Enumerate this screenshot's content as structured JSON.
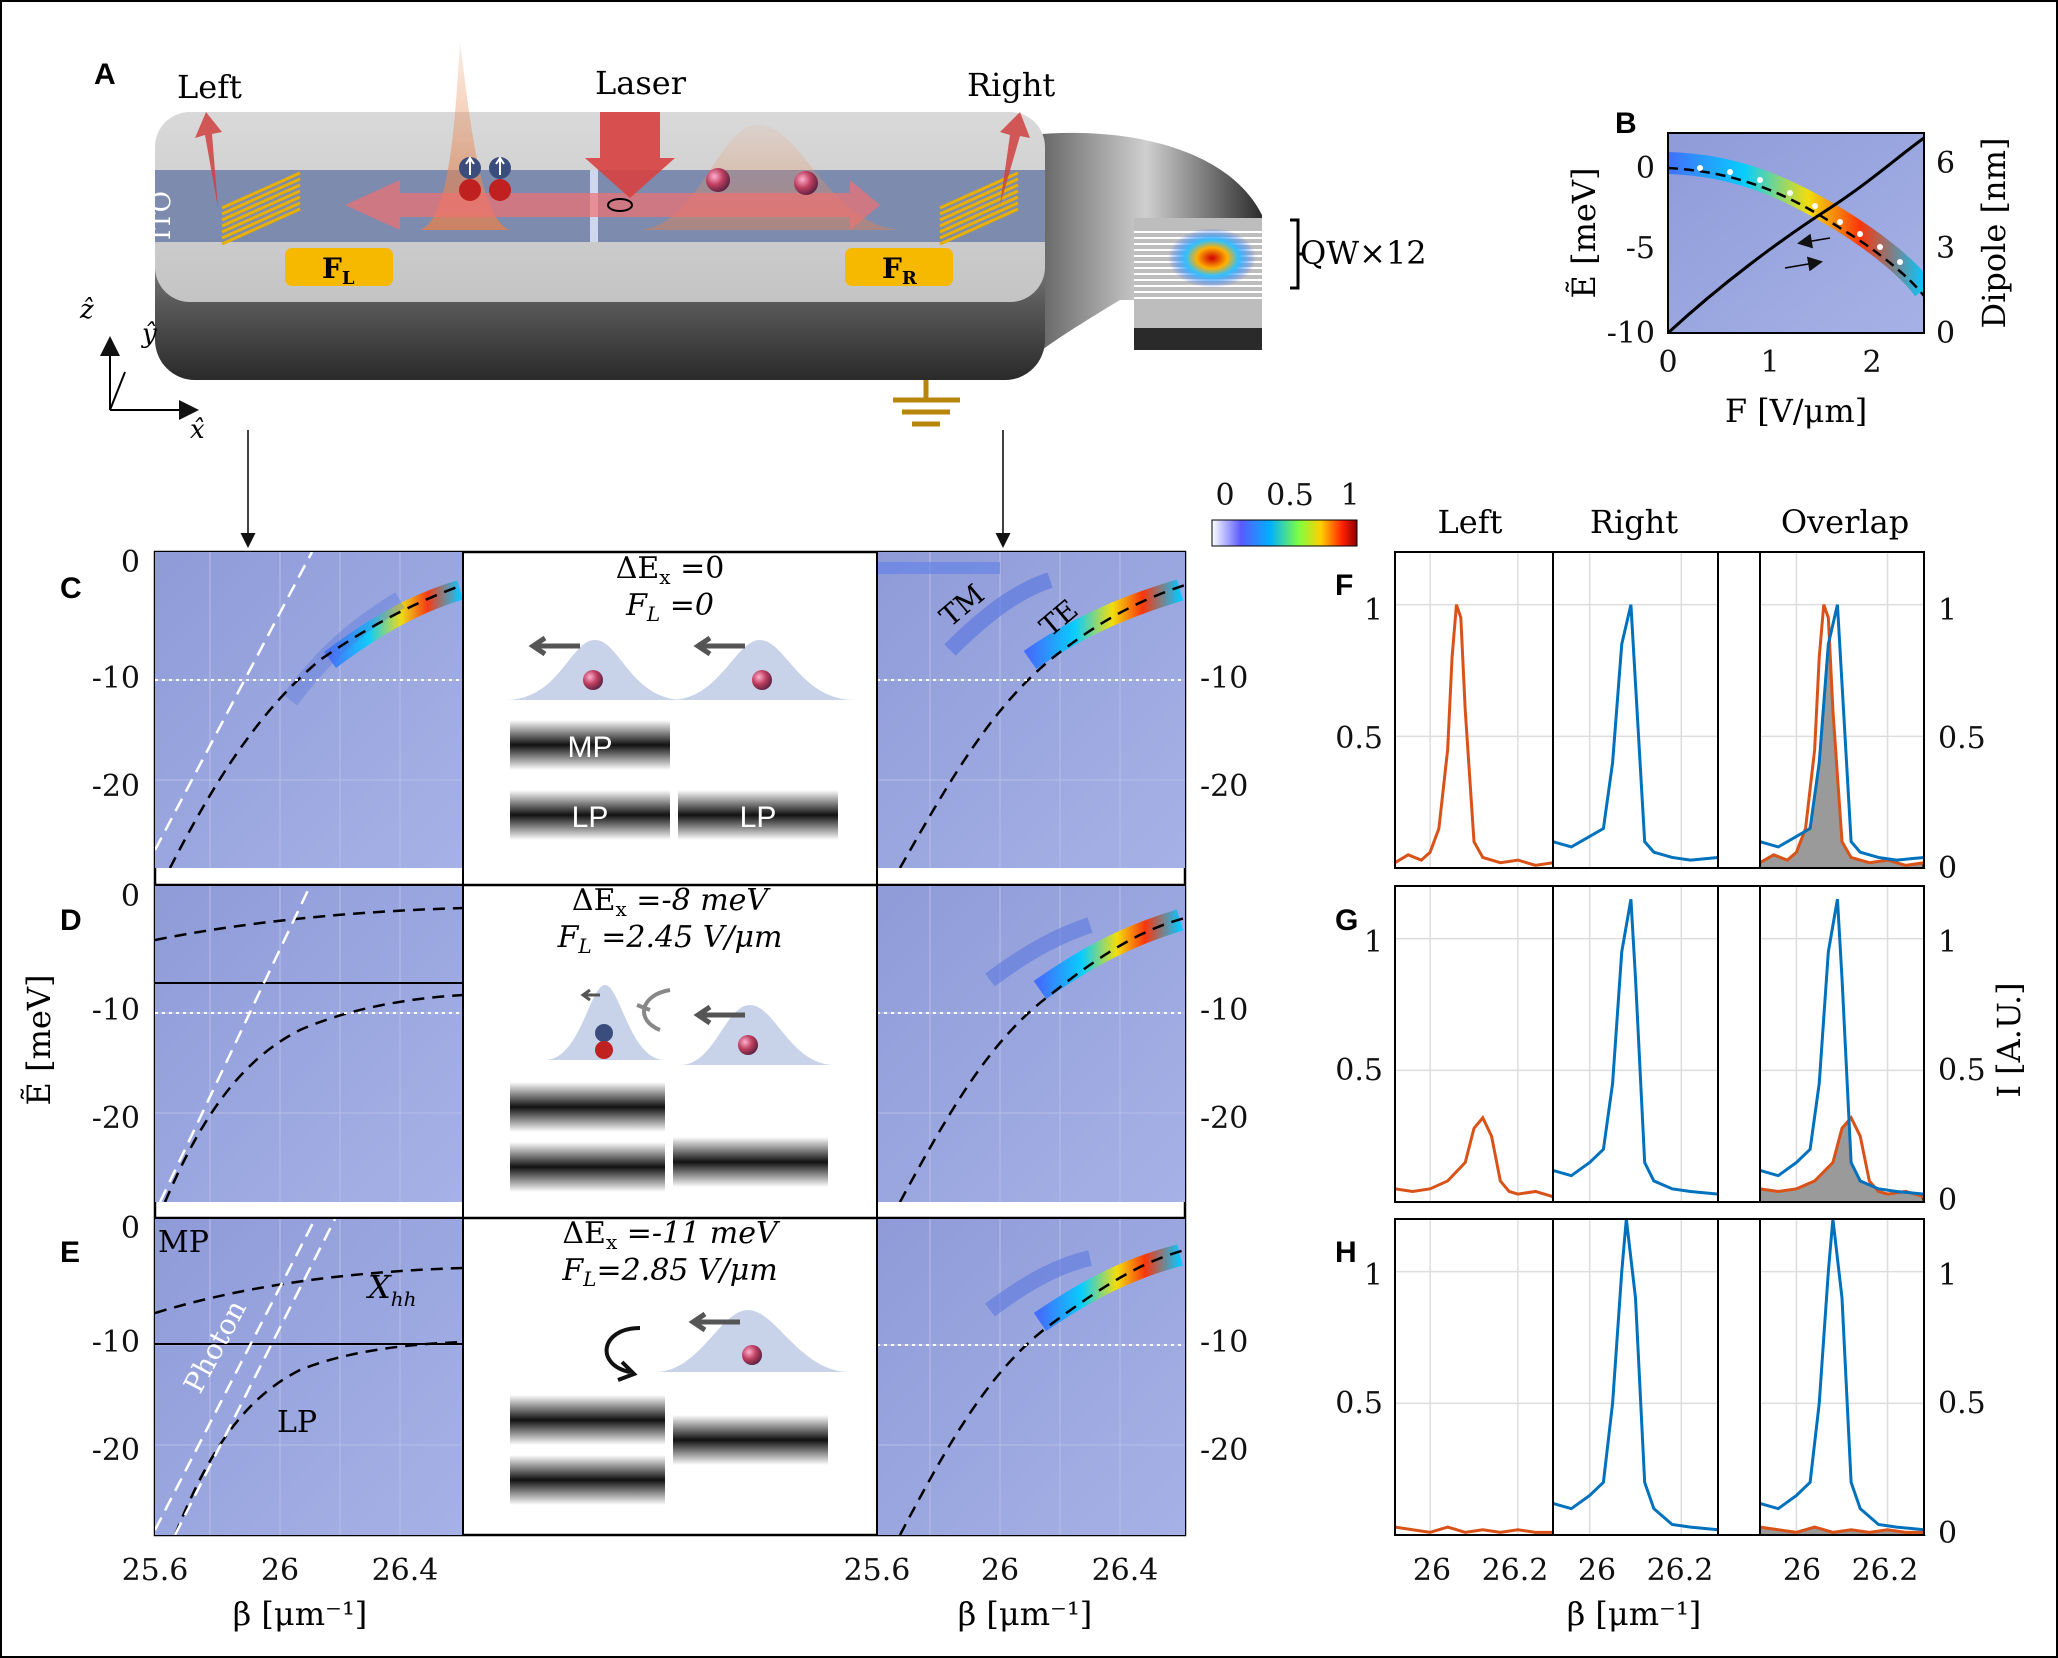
{
  "panels": {
    "A": "A",
    "B": "B",
    "C": "C",
    "D": "D",
    "E": "E",
    "F": "F",
    "G": "G",
    "H": "H"
  },
  "device": {
    "left": "Left",
    "right": "Right",
    "laser": "Laser",
    "ito": "ITO",
    "fl": "F",
    "fl_sub": "L",
    "fr": "F",
    "fr_sub": "R",
    "qw": "QW×12",
    "axis_z": "ẑ",
    "axis_y": "ŷ",
    "axis_x": "x̂"
  },
  "colorbar": {
    "ticks": [
      "0",
      "0.5",
      "1"
    ]
  },
  "panel_b": {
    "ylabel": "Ẽ [meV]",
    "y2label": "Dipole [nm]",
    "xlabel": "F [V/μm]",
    "yticks": [
      "0",
      "-5",
      "-10"
    ],
    "y2ticks": [
      "6",
      "3",
      "0"
    ],
    "xticks": [
      "0",
      "1",
      "2"
    ]
  },
  "dispersion": {
    "yticks": [
      "0",
      "-10",
      "-20"
    ],
    "xticks": [
      "25.6",
      "26",
      "26.4"
    ],
    "xlabel": "β [μm⁻¹]",
    "ylabel": "Ẽ [meV]",
    "labels": {
      "tm": "TM",
      "te": "TE",
      "mp": "MP",
      "xhh": "X",
      "xhh_sub": "hh",
      "photon": "Photon",
      "lp": "LP"
    }
  },
  "schematics": [
    {
      "dEx": "ΔE",
      "dEx_sub": "x",
      "dEx_val": " =0",
      "fl": "F",
      "fl_sub": "L",
      "fl_val": " =0",
      "boxes": [
        "MP",
        "LP",
        "LP"
      ]
    },
    {
      "dEx": "ΔE",
      "dEx_sub": "x",
      "dEx_val": " =-8 meV",
      "fl": "F",
      "fl_sub": "L",
      "fl_val": " =2.45 V/μm"
    },
    {
      "dEx": "ΔE",
      "dEx_sub": "x",
      "dEx_val": " =-11 meV",
      "fl": "F",
      "fl_sub": "L",
      "fl_val": "=2.85 V/μm"
    }
  ],
  "spectra": {
    "titles": [
      "Left",
      "Right",
      "Overlap"
    ],
    "yticks": [
      "1",
      "0.5"
    ],
    "y2ticks": [
      "1",
      "0.5",
      "0"
    ],
    "y2label": "I [A.U.]",
    "xticks": [
      "26",
      "26.2"
    ],
    "xlabel": "β [μm⁻¹]"
  },
  "chart_data": [
    {
      "panel": "F",
      "type": "line",
      "x_range": [
        25.92,
        26.28
      ],
      "y_range": [
        0,
        1.2
      ],
      "series": [
        {
          "name": "Left",
          "color": "#d95319",
          "x": [
            25.92,
            25.95,
            25.98,
            26.0,
            26.02,
            26.04,
            26.05,
            26.06,
            26.07,
            26.08,
            26.1,
            26.12,
            26.16,
            26.2,
            26.24,
            26.28
          ],
          "y": [
            0.02,
            0.05,
            0.03,
            0.06,
            0.15,
            0.45,
            0.8,
            1.0,
            0.95,
            0.6,
            0.1,
            0.04,
            0.02,
            0.03,
            0.01,
            0.02
          ]
        },
        {
          "name": "Right",
          "color": "#0072bd",
          "x": [
            25.92,
            25.96,
            26.0,
            26.03,
            26.05,
            26.07,
            26.09,
            26.1,
            26.12,
            26.14,
            26.18,
            26.22,
            26.28
          ],
          "y": [
            0.1,
            0.08,
            0.12,
            0.15,
            0.4,
            0.85,
            1.0,
            0.7,
            0.1,
            0.06,
            0.04,
            0.03,
            0.04
          ]
        }
      ]
    },
    {
      "panel": "G",
      "type": "line",
      "x_range": [
        25.92,
        26.28
      ],
      "y_range": [
        0,
        1.2
      ],
      "series": [
        {
          "name": "Left",
          "color": "#d95319",
          "x": [
            25.92,
            25.96,
            26.0,
            26.04,
            26.08,
            26.1,
            26.12,
            26.14,
            26.16,
            26.18,
            26.2,
            26.24,
            26.28
          ],
          "y": [
            0.05,
            0.04,
            0.05,
            0.08,
            0.15,
            0.28,
            0.32,
            0.25,
            0.08,
            0.04,
            0.03,
            0.04,
            0.02
          ]
        },
        {
          "name": "Right",
          "color": "#0072bd",
          "x": [
            25.92,
            25.96,
            26.0,
            26.03,
            26.05,
            26.07,
            26.09,
            26.1,
            26.12,
            26.14,
            26.18,
            26.22,
            26.28
          ],
          "y": [
            0.12,
            0.1,
            0.15,
            0.2,
            0.45,
            0.95,
            1.15,
            0.85,
            0.15,
            0.08,
            0.05,
            0.04,
            0.03
          ]
        }
      ]
    },
    {
      "panel": "H",
      "type": "line",
      "x_range": [
        25.92,
        26.28
      ],
      "y_range": [
        0,
        1.2
      ],
      "series": [
        {
          "name": "Left",
          "color": "#d95319",
          "x": [
            25.92,
            25.96,
            26.0,
            26.04,
            26.08,
            26.12,
            26.16,
            26.2,
            26.24,
            26.28
          ],
          "y": [
            0.03,
            0.02,
            0.01,
            0.03,
            0.01,
            0.02,
            0.01,
            0.02,
            0.01,
            0.01
          ]
        },
        {
          "name": "Right",
          "color": "#0072bd",
          "x": [
            25.92,
            25.96,
            26.0,
            26.03,
            26.05,
            26.07,
            26.08,
            26.1,
            26.12,
            26.14,
            26.18,
            26.22,
            26.28
          ],
          "y": [
            0.12,
            0.1,
            0.15,
            0.2,
            0.5,
            1.0,
            1.2,
            0.9,
            0.2,
            0.1,
            0.04,
            0.03,
            0.02
          ]
        }
      ]
    }
  ]
}
